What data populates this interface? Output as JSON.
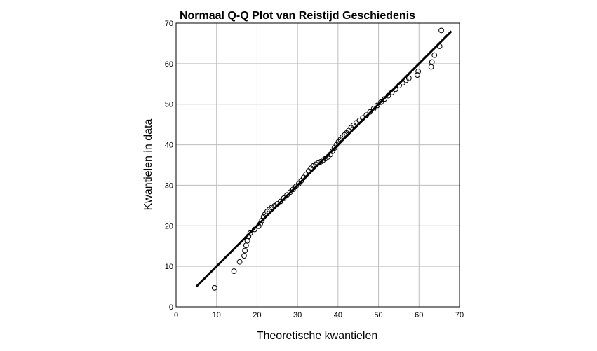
{
  "chart_data": {
    "type": "scatter",
    "title": "Normaal Q-Q Plot van Reistijd Geschiedenis",
    "xlabel": "Theoretische kwantielen",
    "ylabel": "Kwantielen in data",
    "xlim": [
      0,
      70
    ],
    "ylim": [
      0,
      70
    ],
    "x_ticks": [
      0,
      10,
      20,
      30,
      40,
      50,
      60,
      70
    ],
    "y_ticks": [
      0,
      10,
      20,
      30,
      40,
      50,
      60,
      70
    ],
    "grid": true,
    "reference_line": {
      "x": [
        5,
        68
      ],
      "y": [
        5,
        68
      ]
    },
    "series": [
      {
        "x": [
          9.5,
          14.3,
          15.7,
          16.8,
          17.0,
          17.3,
          17.6,
          17.9,
          18.3,
          19.4,
          20.4,
          20.8,
          21.2,
          21.6,
          22.0,
          22.5,
          23.0,
          23.6,
          24.3,
          25.0,
          25.8,
          26.6,
          27.4,
          28.2,
          28.9,
          29.6,
          30.3,
          30.9,
          31.5,
          32.1,
          32.7,
          33.3,
          33.9,
          34.5,
          35.1,
          35.7,
          36.3,
          36.9,
          37.5,
          38.1,
          38.6,
          39.1,
          39.6,
          40.1,
          40.6,
          41.1,
          41.6,
          42.1,
          42.6,
          43.2,
          43.8,
          44.5,
          45.3,
          46.1,
          47.0,
          47.9,
          48.8,
          49.7,
          50.6,
          51.5,
          52.4,
          53.3,
          54.2,
          55.1,
          56.0,
          56.8,
          57.5,
          59.6,
          59.8,
          63.0,
          63.2,
          63.8,
          65.1,
          65.5
        ],
        "y": [
          4.7,
          8.8,
          11.1,
          12.6,
          13.9,
          15.2,
          16.3,
          17.4,
          18.2,
          19.1,
          19.9,
          20.5,
          21.3,
          22.2,
          22.9,
          23.5,
          24.0,
          24.5,
          24.9,
          25.4,
          26.0,
          26.8,
          27.6,
          28.3,
          29.0,
          29.7,
          30.4,
          31.1,
          31.9,
          32.7,
          33.5,
          34.2,
          34.8,
          35.2,
          35.5,
          35.8,
          36.2,
          36.6,
          37.0,
          37.6,
          38.4,
          39.2,
          40.0,
          40.7,
          41.3,
          41.9,
          42.4,
          42.9,
          43.5,
          44.2,
          44.8,
          45.4,
          46.0,
          46.6,
          47.3,
          48.1,
          48.9,
          49.7,
          50.5,
          51.3,
          52.1,
          52.9,
          53.7,
          54.6,
          55.3,
          55.9,
          56.4,
          57.2,
          58.1,
          59.2,
          60.4,
          62.1,
          64.3,
          68.2
        ]
      }
    ]
  }
}
